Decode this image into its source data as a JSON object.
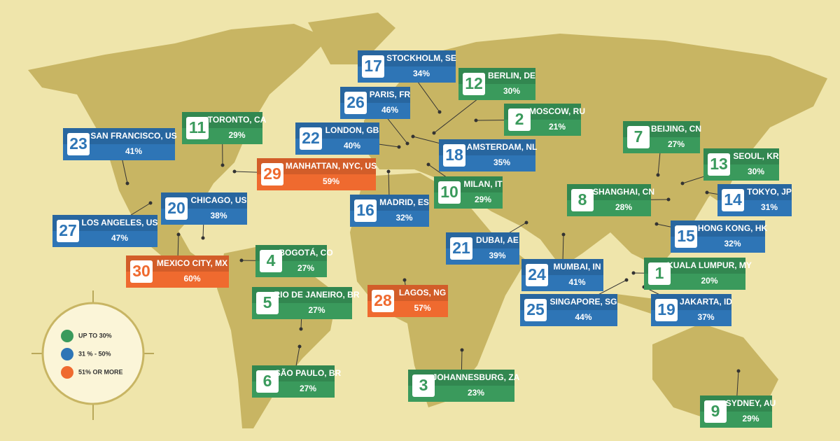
{
  "legend": {
    "items": [
      {
        "label": "UP TO 30%",
        "color": "#3a9a5c"
      },
      {
        "label": "31 % - 50%",
        "color": "#2e75b6"
      },
      {
        "label": "51% OR MORE",
        "color": "#ef6a2f"
      }
    ]
  },
  "cities": [
    {
      "rank": "17",
      "name": "STOCKHOLM, SE",
      "share": "34%",
      "color": "#2e75b6"
    },
    {
      "rank": "12",
      "name": "BERLIN, DE",
      "share": "30%",
      "color": "#3a9a5c"
    },
    {
      "rank": "26",
      "name": "PARIS, FR",
      "share": "46%",
      "color": "#2e75b6"
    },
    {
      "rank": "2",
      "name": "MOSCOW, RU",
      "share": "21%",
      "color": "#3a9a5c"
    },
    {
      "rank": "11",
      "name": "TORONTO, CA",
      "share": "29%",
      "color": "#3a9a5c"
    },
    {
      "rank": "23",
      "name": "SAN FRANCISCO, US",
      "share": "41%",
      "color": "#2e75b6"
    },
    {
      "rank": "22",
      "name": "LONDON, GB",
      "share": "40%",
      "color": "#2e75b6"
    },
    {
      "rank": "7",
      "name": "BEIJING, CN",
      "share": "27%",
      "color": "#3a9a5c"
    },
    {
      "rank": "18",
      "name": "AMSTERDAM, NL",
      "share": "35%",
      "color": "#2e75b6"
    },
    {
      "rank": "29",
      "name": "MANHATTAN, NYC, US",
      "share": "59%",
      "color": "#ef6a2f"
    },
    {
      "rank": "13",
      "name": "SEOUL, KR",
      "share": "30%",
      "color": "#3a9a5c"
    },
    {
      "rank": "10",
      "name": "MILAN, IT",
      "share": "29%",
      "color": "#3a9a5c"
    },
    {
      "rank": "8",
      "name": "SHANGHAI, CN",
      "share": "28%",
      "color": "#3a9a5c"
    },
    {
      "rank": "14",
      "name": "TOKYO, JP",
      "share": "31%",
      "color": "#2e75b6"
    },
    {
      "rank": "20",
      "name": "CHICAGO, US",
      "share": "38%",
      "color": "#2e75b6"
    },
    {
      "rank": "16",
      "name": "MADRID, ES",
      "share": "32%",
      "color": "#2e75b6"
    },
    {
      "rank": "27",
      "name": "LOS ANGELES, US",
      "share": "47%",
      "color": "#2e75b6"
    },
    {
      "rank": "15",
      "name": "HONG KONG, HK",
      "share": "32%",
      "color": "#2e75b6"
    },
    {
      "rank": "21",
      "name": "DUBAI, AE",
      "share": "39%",
      "color": "#2e75b6"
    },
    {
      "rank": "4",
      "name": "BOGOTÁ, CO",
      "share": "27%",
      "color": "#3a9a5c"
    },
    {
      "rank": "30",
      "name": "MEXICO CITY, MX",
      "share": "60%",
      "color": "#ef6a2f"
    },
    {
      "rank": "24",
      "name": "MUMBAI, IN",
      "share": "41%",
      "color": "#2e75b6"
    },
    {
      "rank": "1",
      "name": "KUALA LUMPUR, MY",
      "share": "20%",
      "color": "#3a9a5c"
    },
    {
      "rank": "5",
      "name": "RIO DE JANEIRO, BR",
      "share": "27%",
      "color": "#3a9a5c"
    },
    {
      "rank": "28",
      "name": "LAGOS, NG",
      "share": "57%",
      "color": "#ef6a2f"
    },
    {
      "rank": "25",
      "name": "SINGAPORE, SG",
      "share": "44%",
      "color": "#2e75b6"
    },
    {
      "rank": "19",
      "name": "JAKARTA, ID",
      "share": "37%",
      "color": "#2e75b6"
    },
    {
      "rank": "6",
      "name": "SÃO PAULO, BR",
      "share": "27%",
      "color": "#3a9a5c"
    },
    {
      "rank": "3",
      "name": "JOHANNESBURG, ZA",
      "share": "23%",
      "color": "#3a9a5c"
    },
    {
      "rank": "9",
      "name": "SYDNEY, AU",
      "share": "29%",
      "color": "#3a9a5c"
    }
  ]
}
